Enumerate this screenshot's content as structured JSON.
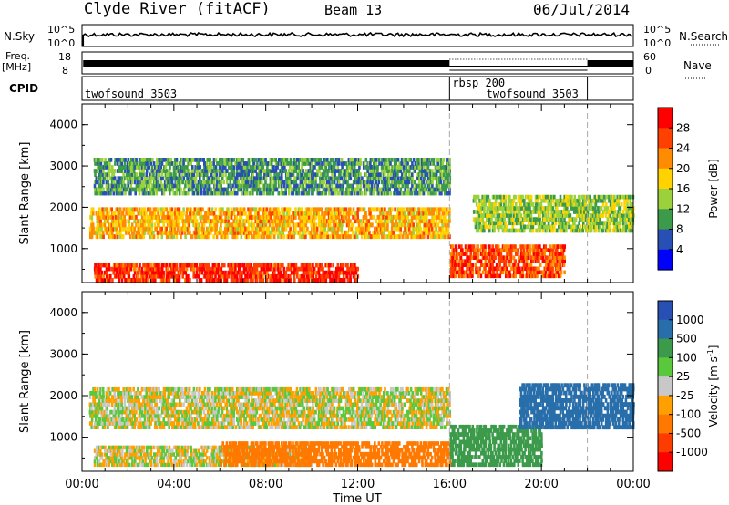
{
  "header": {
    "radar": "Clyde River (fitACF)",
    "beam": "Beam 13",
    "date": "06/Jul/2014"
  },
  "nsky_panel": {
    "left_label": "N.Sky",
    "left_ticks": [
      "10^5",
      "10^0"
    ],
    "right_ticks": [
      "10^5",
      "10^0"
    ],
    "right_label": "N.Search"
  },
  "freq_panel": {
    "label_line1": "Freq.",
    "label_line2": "[MHz]",
    "left_ticks": [
      "18",
      "8"
    ],
    "right_ticks": [
      "60",
      "0"
    ],
    "right_label": "Nave"
  },
  "cpid_panel": {
    "label": "CPID",
    "segments": [
      {
        "name": "twofsound 3503",
        "start_h": 0,
        "end_h": 16
      },
      {
        "name": "rbsp 200",
        "start_h": 16,
        "end_h": 22
      },
      {
        "name": "twofsound 3503",
        "start_h": 16,
        "end_h": 22
      }
    ]
  },
  "power_colorbar": {
    "label": "Power [dB]",
    "ticks": [
      "28",
      "24",
      "20",
      "16",
      "12",
      "8",
      "4"
    ],
    "colors": [
      "#ff0000",
      "#ff4000",
      "#ff8c00",
      "#ffd200",
      "#9bd23c",
      "#3c9b4b",
      "#2850b4",
      "#0000ff"
    ]
  },
  "velocity_colorbar": {
    "label": "Velocity [m s",
    "label_sup": "-1",
    "label_end": "]",
    "ticks": [
      "1000",
      "500",
      "100",
      "25",
      "-25",
      "-100",
      "-500",
      "-1000"
    ],
    "colors": [
      "#2850b4",
      "#286eaa",
      "#3c9b4b",
      "#5ac83c",
      "#c8c8c8",
      "#ffa000",
      "#ff7800",
      "#ff3c00",
      "#ff0000"
    ]
  },
  "chart_data": [
    {
      "type": "heatmap",
      "title": "",
      "xlabel": "Time UT",
      "ylabel": "Slant Range [km]",
      "x_ticks": [
        "00:00",
        "04:00",
        "08:00",
        "12:00",
        "16:00",
        "20:00",
        "00:00"
      ],
      "xlim": [
        0,
        24
      ],
      "y_ticks": [
        "1000",
        "2000",
        "3000",
        "4000"
      ],
      "ylim": [
        180,
        4500
      ],
      "quantity": "Power [dB]",
      "bands": [
        {
          "start_h": 0.3,
          "end_h": 16,
          "range_low": 1250,
          "range_high": 2000,
          "value": 20
        },
        {
          "start_h": 0.5,
          "end_h": 12,
          "range_low": 200,
          "range_high": 650,
          "value": 28
        },
        {
          "start_h": 16,
          "end_h": 21,
          "range_low": 300,
          "range_high": 1100,
          "value": 26
        },
        {
          "start_h": 17,
          "end_h": 24,
          "range_low": 1400,
          "range_high": 2300,
          "value": 14
        },
        {
          "start_h": 0.5,
          "end_h": 16,
          "range_low": 2300,
          "range_high": 3200,
          "value": 10
        }
      ]
    },
    {
      "type": "heatmap",
      "title": "",
      "xlabel": "Time UT",
      "ylabel": "Slant Range [km]",
      "x_ticks": [
        "00:00",
        "04:00",
        "08:00",
        "12:00",
        "16:00",
        "20:00",
        "00:00"
      ],
      "xlim": [
        0,
        24
      ],
      "y_ticks": [
        "1000",
        "2000",
        "3000",
        "4000"
      ],
      "ylim": [
        180,
        4500
      ],
      "quantity": "Velocity [m s-1]",
      "bands": [
        {
          "start_h": 0.3,
          "end_h": 16,
          "range_low": 1200,
          "range_high": 2200,
          "value": 0
        },
        {
          "start_h": 0.5,
          "end_h": 10,
          "range_low": 300,
          "range_high": 800,
          "value": 0
        },
        {
          "start_h": 6,
          "end_h": 16,
          "range_low": 300,
          "range_high": 900,
          "value": -300
        },
        {
          "start_h": 16,
          "end_h": 20,
          "range_low": 300,
          "range_high": 1300,
          "value": 300
        },
        {
          "start_h": 19,
          "end_h": 24,
          "range_low": 1200,
          "range_high": 2300,
          "value": 600
        }
      ]
    }
  ]
}
